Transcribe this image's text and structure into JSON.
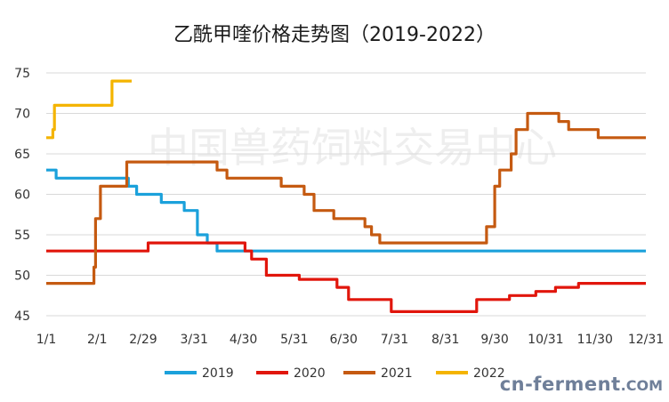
{
  "watermark": "中国兽药饲料交易中心",
  "brand": {
    "main": "cn-ferment",
    "suffix": ".COM"
  },
  "chart_data": {
    "type": "line",
    "title": "乙酰甲喹价格走势图（2019-2022）",
    "xlabel": "",
    "ylabel": "",
    "ylim": [
      45,
      75
    ],
    "yticks": [
      45,
      50,
      55,
      60,
      65,
      70,
      75
    ],
    "x_domain_days": [
      0,
      365
    ],
    "xticks": [
      {
        "label": "1/1",
        "day": 0
      },
      {
        "label": "2/1",
        "day": 31
      },
      {
        "label": "2/29",
        "day": 59
      },
      {
        "label": "3/31",
        "day": 90
      },
      {
        "label": "4/30",
        "day": 120
      },
      {
        "label": "5/31",
        "day": 151
      },
      {
        "label": "6/30",
        "day": 181
      },
      {
        "label": "7/31",
        "day": 212
      },
      {
        "label": "8/31",
        "day": 243
      },
      {
        "label": "9/30",
        "day": 273
      },
      {
        "label": "10/31",
        "day": 304
      },
      {
        "label": "11/30",
        "day": 334
      },
      {
        "label": "12/31",
        "day": 365
      }
    ],
    "grid": "horizontal",
    "legend": "bottom",
    "series": [
      {
        "name": "2019",
        "color": "#1ba1db",
        "points": [
          [
            0,
            63
          ],
          [
            6,
            63
          ],
          [
            6,
            62
          ],
          [
            50,
            62
          ],
          [
            50,
            61
          ],
          [
            55,
            61
          ],
          [
            55,
            60
          ],
          [
            70,
            60
          ],
          [
            70,
            59
          ],
          [
            84,
            59
          ],
          [
            84,
            58
          ],
          [
            92,
            58
          ],
          [
            92,
            55
          ],
          [
            98,
            55
          ],
          [
            98,
            54
          ],
          [
            104,
            54
          ],
          [
            104,
            53
          ],
          [
            365,
            53
          ]
        ]
      },
      {
        "name": "2020",
        "color": "#e1160c",
        "points": [
          [
            0,
            53
          ],
          [
            62,
            53
          ],
          [
            62,
            54
          ],
          [
            121,
            54
          ],
          [
            121,
            53
          ],
          [
            125,
            53
          ],
          [
            125,
            52
          ],
          [
            134,
            52
          ],
          [
            134,
            50
          ],
          [
            154,
            50
          ],
          [
            154,
            49.5
          ],
          [
            177,
            49.5
          ],
          [
            177,
            48.5
          ],
          [
            184,
            48.5
          ],
          [
            184,
            47
          ],
          [
            210,
            47
          ],
          [
            210,
            45.5
          ],
          [
            262,
            45.5
          ],
          [
            262,
            47
          ],
          [
            282,
            47
          ],
          [
            282,
            47.5
          ],
          [
            298,
            47.5
          ],
          [
            298,
            48
          ],
          [
            310,
            48
          ],
          [
            310,
            48.5
          ],
          [
            324,
            48.5
          ],
          [
            324,
            49
          ],
          [
            365,
            49
          ]
        ]
      },
      {
        "name": "2021",
        "color": "#c55a11",
        "points": [
          [
            0,
            49
          ],
          [
            29,
            49
          ],
          [
            29,
            51
          ],
          [
            30,
            51
          ],
          [
            30,
            57
          ],
          [
            33,
            57
          ],
          [
            33,
            61
          ],
          [
            49,
            61
          ],
          [
            49,
            64
          ],
          [
            104,
            64
          ],
          [
            104,
            63
          ],
          [
            110,
            63
          ],
          [
            110,
            62
          ],
          [
            143,
            62
          ],
          [
            143,
            61
          ],
          [
            157,
            61
          ],
          [
            157,
            60
          ],
          [
            163,
            60
          ],
          [
            163,
            58
          ],
          [
            175,
            58
          ],
          [
            175,
            57
          ],
          [
            194,
            57
          ],
          [
            194,
            56
          ],
          [
            198,
            56
          ],
          [
            198,
            55
          ],
          [
            203,
            55
          ],
          [
            203,
            54
          ],
          [
            268,
            54
          ],
          [
            268,
            56
          ],
          [
            273,
            56
          ],
          [
            273,
            61
          ],
          [
            276,
            61
          ],
          [
            276,
            63
          ],
          [
            283,
            63
          ],
          [
            283,
            65
          ],
          [
            286,
            65
          ],
          [
            286,
            68
          ],
          [
            293,
            68
          ],
          [
            293,
            70
          ],
          [
            312,
            70
          ],
          [
            312,
            69
          ],
          [
            318,
            69
          ],
          [
            318,
            68
          ],
          [
            336,
            68
          ],
          [
            336,
            67
          ],
          [
            365,
            67
          ]
        ]
      },
      {
        "name": "2022",
        "color": "#f4b400",
        "points": [
          [
            0,
            67
          ],
          [
            4,
            67
          ],
          [
            4,
            68
          ],
          [
            5,
            68
          ],
          [
            5,
            71
          ],
          [
            40,
            71
          ],
          [
            40,
            74
          ],
          [
            52,
            74
          ]
        ]
      }
    ]
  }
}
